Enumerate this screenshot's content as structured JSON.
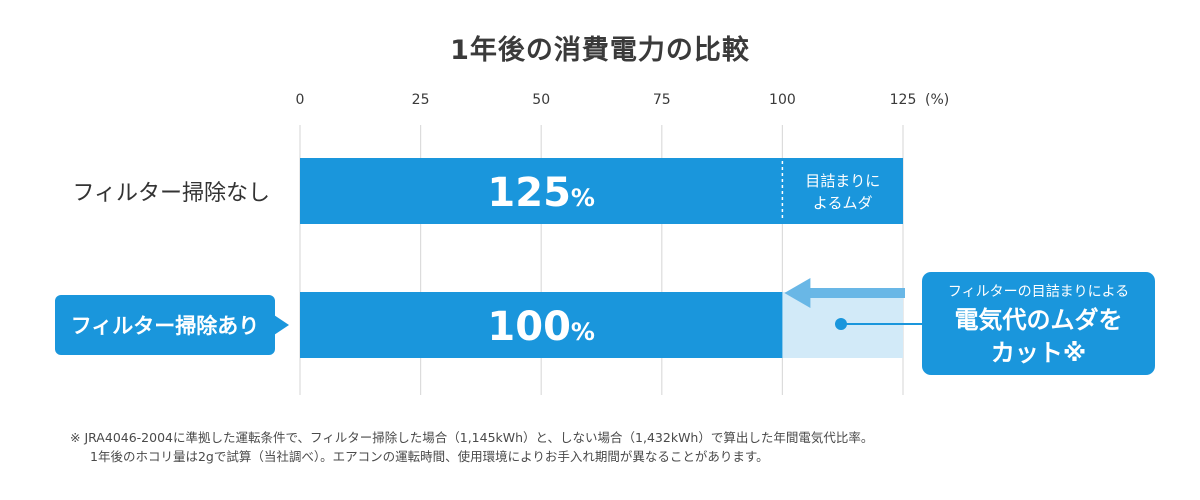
{
  "chart_data": {
    "type": "bar",
    "orientation": "horizontal",
    "title": "1年後の消費電力の比較",
    "unit": "(%)",
    "xlim": [
      0,
      125
    ],
    "ticks": [
      0,
      25,
      50,
      75,
      100,
      125
    ],
    "grid": true,
    "categories": [
      "フィルター掃除なし",
      "フィルター掃除あり"
    ],
    "values": [
      125,
      100
    ],
    "value_labels": [
      "125",
      "100"
    ],
    "value_suffix": "%",
    "segment_annotation": {
      "category": "フィルター掃除なし",
      "from": 100,
      "to": 125,
      "text_lines": [
        "目詰まりに",
        "よるムダ"
      ]
    },
    "callout": {
      "lines": [
        "フィルターの目詰まりによる",
        "電気代のムダを",
        "カット※"
      ]
    },
    "colors": {
      "bar": "#1a96dc",
      "callout": "#1a96dc",
      "saved_region": "#d2eaf8",
      "arrow": "#69b7e6",
      "grid": "#dcdcdc",
      "text": "#3a3a3a"
    }
  },
  "footnote": {
    "lines": [
      "※ JRA4046-2004に準拠した運転条件で、フィルター掃除した場合（1,145kWh）と、しない場合（1,432kWh）で算出した年間電気代比率。",
      "1年後のホコリ量は2gで試算（当社調べ）。エアコンの運転時間、使用環境によりお手入れ期間が異なることがあります。"
    ]
  }
}
